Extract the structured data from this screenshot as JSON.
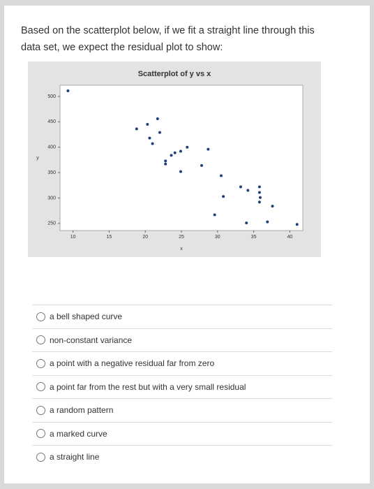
{
  "question": "Based on the scatterplot below, if we fit a straight line through this data set, we expect the residual plot to show:",
  "chart_data": {
    "type": "scatter",
    "title": "Scatterplot of y vs x",
    "x_label": "x",
    "y_label": "y",
    "color": "#1f3f7a",
    "x": [
      9.3,
      21.7,
      20.3,
      18.8,
      22,
      20.6,
      21,
      25.8,
      24.9,
      24.1,
      28.7,
      23.6,
      22.8,
      22.8,
      27.8,
      24.9,
      30.5,
      33.2,
      34.2,
      35.8,
      35.8,
      35.9,
      35.8,
      37.6,
      30.8,
      29.6,
      34,
      36.9,
      41
    ],
    "values": [
      511,
      456,
      445,
      436,
      429,
      418,
      407,
      400,
      392,
      389,
      396,
      384,
      373,
      367,
      364,
      352,
      344,
      322,
      315,
      322,
      311,
      301,
      292,
      284,
      303,
      267,
      251,
      253,
      248
    ],
    "xlim": [
      8.2,
      41.8
    ],
    "ylim": [
      236,
      522
    ],
    "xticks": [
      10,
      15,
      20,
      25,
      30,
      35,
      40
    ],
    "yticks": [
      250,
      300,
      350,
      400,
      450,
      500
    ]
  },
  "options": [
    "a bell shaped curve",
    "non-constant variance",
    "a point with a negative residual far from zero",
    "a point far from the rest but with a very small residual",
    "a random pattern",
    "a marked curve",
    "a straight line"
  ]
}
